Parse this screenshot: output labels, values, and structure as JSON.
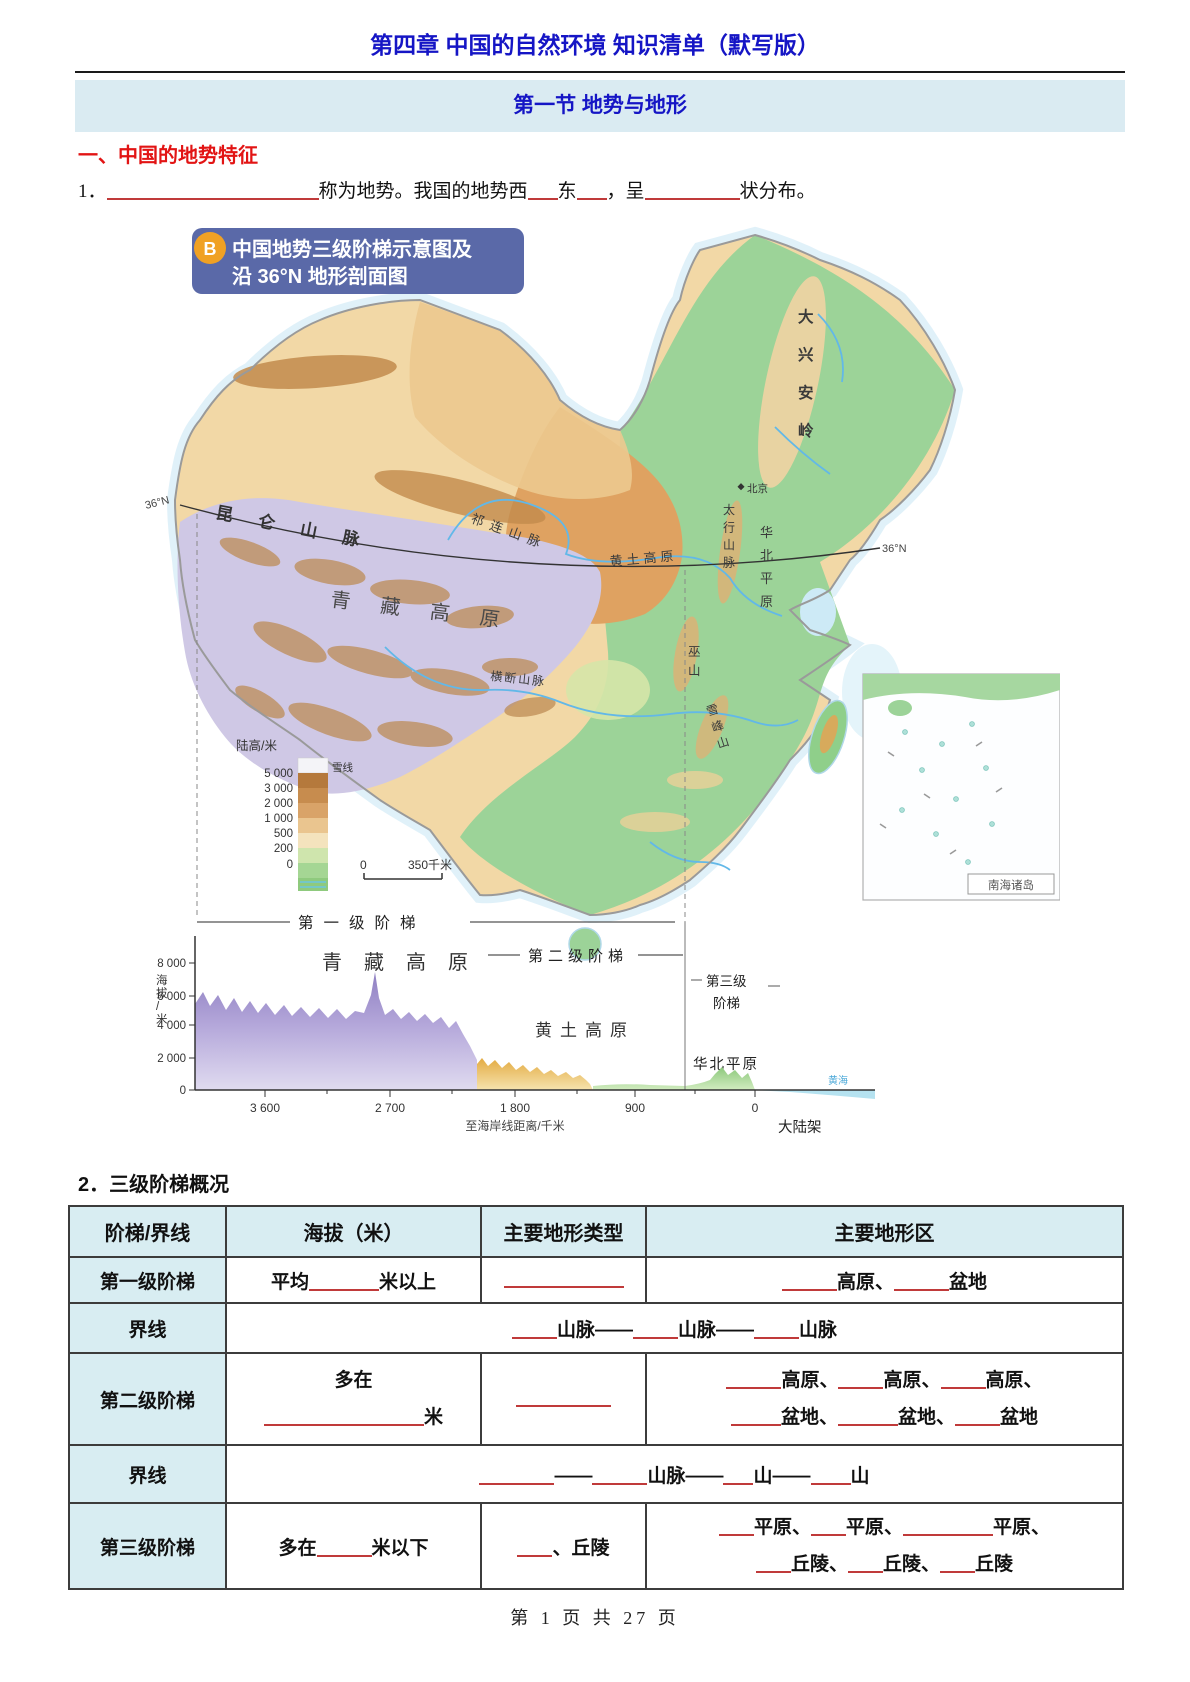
{
  "doc": {
    "chapter_title": "第四章 中国的自然环境 知识清单（默写版）",
    "section_title": "第一节 地势与地形",
    "heading_1": "一、中国的地势特征",
    "item_2_title": "2．三级阶梯概况",
    "footer": "第 1 页 共 27 页"
  },
  "q1": {
    "num": "1．",
    "t1": "称为地势。我国的地势西",
    "t2": "东",
    "t3": "，呈",
    "t4": "状分布。"
  },
  "figure": {
    "badge": "B",
    "title_line1": "中国地势三级阶梯示意图及",
    "title_line2": "沿 36°N 地形剖面图",
    "labels": {
      "daxinganling": "大兴安岭",
      "beijing": "北京",
      "taihangshan": "太行山脉",
      "huabei_pingyuan": "华北平原",
      "huangtu_gaoyuan": "黄土高原",
      "qilianshan": "祁连山脉",
      "kunlunshan": "昆仑山脉",
      "qingzang_gaoyuan": "青藏高原",
      "hengduanshan": "横断山脉",
      "wushan": "巫山",
      "xuefengshan": "雪峰山",
      "lat_left": "36°N",
      "lat_right": "36°N",
      "nanhai_inset": "南海诸岛"
    },
    "legend": {
      "title": "陆高/米",
      "snow_line": "雪线",
      "ticks": [
        "5 000",
        "3 000",
        "2 000",
        "1 000",
        "500",
        "200",
        "0"
      ]
    },
    "scale_zero": "0",
    "scale_label": "350千米",
    "profile": {
      "y_label": "海拔/米",
      "y_ticks": [
        "8 000",
        "6 000",
        "4 000",
        "2 000",
        "0"
      ],
      "x_ticks": [
        "3 600",
        "2 700",
        "1 800",
        "900",
        "0"
      ],
      "x_label": "至海岸线距离/千米",
      "step1": "第一级阶梯",
      "step2": "第二级阶梯",
      "step3_line1": "第三级",
      "step3_line2": "阶梯",
      "qingzang": "青藏高原",
      "huangtu": "黄土高原",
      "huabei": "华北平原",
      "sea": "黄海",
      "shelf": "大陆架"
    }
  },
  "table": {
    "headers": [
      "阶梯/界线",
      "海拔（米）",
      "主要地形类型",
      "主要地形区"
    ],
    "r1": {
      "label": "第一级阶梯",
      "alt_pre": "平均",
      "alt_post": "米以上",
      "region1": "高原、",
      "region2": "盆地"
    },
    "r2": {
      "label": "界线",
      "seg1": "山脉——",
      "seg2": "山脉——",
      "seg3": "山脉"
    },
    "r3": {
      "label": "第二级阶梯",
      "alt_line1": "多在",
      "alt_post": "米",
      "regions_a1": "高原、",
      "regions_a2": "高原、",
      "regions_a3": "高原、",
      "regions_b1": "盆地、",
      "regions_b2": "盆地、",
      "regions_b3": "盆地"
    },
    "r4": {
      "label": "界线",
      "seg1": "——",
      "seg2": "山脉——",
      "seg3": "山——",
      "seg4": "山"
    },
    "r5": {
      "label": "第三级阶梯",
      "alt_pre": "多在",
      "alt_post": "米以下",
      "type_post": "、丘陵",
      "regions_a1": "平原、",
      "regions_a2": "平原、",
      "regions_a3": "平原、",
      "regions_b1": "丘陵、",
      "regions_b2": "丘陵、",
      "regions_b3": "丘陵"
    }
  }
}
